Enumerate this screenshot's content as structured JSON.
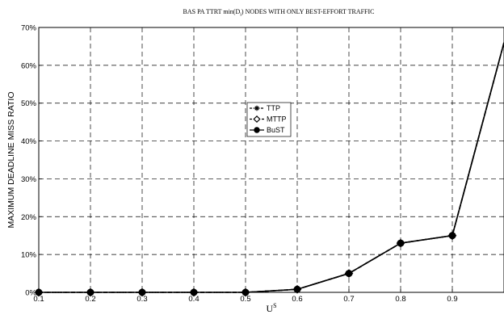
{
  "chart_data": {
    "type": "line",
    "title": "BAS PA TTRT min(D_i) NODES WITH ONLY BEST-EFFORT TRAFFIC",
    "title_parts": {
      "before": "BAS PA TTRT min(D",
      "sub": "i",
      "after": ") NODES WITH ONLY BEST-EFFORT TRAFFIC"
    },
    "xlabel": "U",
    "xlabel_sup": "S",
    "ylabel": "MAXIMUM DEADLINE MISS RATIO",
    "xlim": [
      0.1,
      1.0
    ],
    "ylim": [
      0,
      70
    ],
    "x_ticks": [
      "0.1",
      "0.2",
      "0.3",
      "0.4",
      "0.5",
      "0.6",
      "0.7",
      "0.8",
      "0.9"
    ],
    "y_ticks": [
      "0%",
      "10%",
      "20%",
      "30%",
      "40%",
      "50%",
      "60%",
      "70%"
    ],
    "grid": true,
    "legend_position": "center",
    "x": [
      0.1,
      0.2,
      0.3,
      0.4,
      0.5,
      0.6,
      0.7,
      0.8,
      0.9,
      1.0
    ],
    "series": [
      {
        "name": "TTP",
        "marker": "asterisk",
        "style": "dash-dot",
        "values": [
          0,
          0,
          0,
          0,
          0,
          0.8,
          5,
          13,
          15,
          66
        ]
      },
      {
        "name": "MTTP",
        "marker": "diamond",
        "style": "dashed",
        "values": [
          0,
          0,
          0,
          0,
          0,
          0.8,
          5,
          13,
          15,
          66
        ]
      },
      {
        "name": "BuST",
        "marker": "circle",
        "style": "solid",
        "values": [
          0,
          0,
          0,
          0,
          0,
          0.8,
          5,
          13,
          15,
          66
        ]
      }
    ],
    "line_color": "#000000"
  }
}
